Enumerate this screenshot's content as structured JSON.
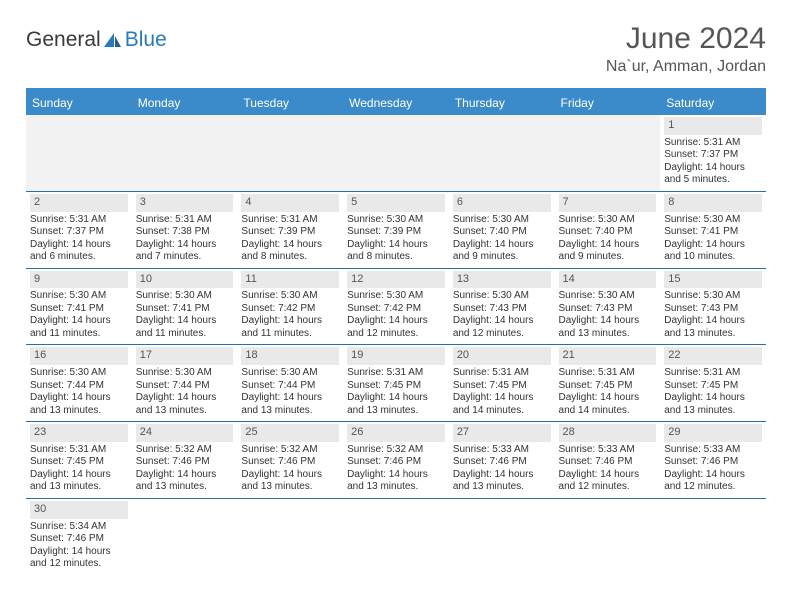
{
  "brand": {
    "part1": "General",
    "part2": "Blue"
  },
  "title": "June 2024",
  "location": "Na`ur, Amman, Jordan",
  "colors": {
    "header_bg": "#3b8bcb",
    "header_text": "#ffffff",
    "daynum_bg": "#e9e9e9",
    "border": "#2a6fa8",
    "text": "#333333",
    "title_color": "#555555"
  },
  "weekdays": [
    "Sunday",
    "Monday",
    "Tuesday",
    "Wednesday",
    "Thursday",
    "Friday",
    "Saturday"
  ],
  "weeks": [
    [
      null,
      null,
      null,
      null,
      null,
      null,
      {
        "n": "1",
        "sr": "Sunrise: 5:31 AM",
        "ss": "Sunset: 7:37 PM",
        "d1": "Daylight: 14 hours",
        "d2": "and 5 minutes."
      }
    ],
    [
      {
        "n": "2",
        "sr": "Sunrise: 5:31 AM",
        "ss": "Sunset: 7:37 PM",
        "d1": "Daylight: 14 hours",
        "d2": "and 6 minutes."
      },
      {
        "n": "3",
        "sr": "Sunrise: 5:31 AM",
        "ss": "Sunset: 7:38 PM",
        "d1": "Daylight: 14 hours",
        "d2": "and 7 minutes."
      },
      {
        "n": "4",
        "sr": "Sunrise: 5:31 AM",
        "ss": "Sunset: 7:39 PM",
        "d1": "Daylight: 14 hours",
        "d2": "and 8 minutes."
      },
      {
        "n": "5",
        "sr": "Sunrise: 5:30 AM",
        "ss": "Sunset: 7:39 PM",
        "d1": "Daylight: 14 hours",
        "d2": "and 8 minutes."
      },
      {
        "n": "6",
        "sr": "Sunrise: 5:30 AM",
        "ss": "Sunset: 7:40 PM",
        "d1": "Daylight: 14 hours",
        "d2": "and 9 minutes."
      },
      {
        "n": "7",
        "sr": "Sunrise: 5:30 AM",
        "ss": "Sunset: 7:40 PM",
        "d1": "Daylight: 14 hours",
        "d2": "and 9 minutes."
      },
      {
        "n": "8",
        "sr": "Sunrise: 5:30 AM",
        "ss": "Sunset: 7:41 PM",
        "d1": "Daylight: 14 hours",
        "d2": "and 10 minutes."
      }
    ],
    [
      {
        "n": "9",
        "sr": "Sunrise: 5:30 AM",
        "ss": "Sunset: 7:41 PM",
        "d1": "Daylight: 14 hours",
        "d2": "and 11 minutes."
      },
      {
        "n": "10",
        "sr": "Sunrise: 5:30 AM",
        "ss": "Sunset: 7:41 PM",
        "d1": "Daylight: 14 hours",
        "d2": "and 11 minutes."
      },
      {
        "n": "11",
        "sr": "Sunrise: 5:30 AM",
        "ss": "Sunset: 7:42 PM",
        "d1": "Daylight: 14 hours",
        "d2": "and 11 minutes."
      },
      {
        "n": "12",
        "sr": "Sunrise: 5:30 AM",
        "ss": "Sunset: 7:42 PM",
        "d1": "Daylight: 14 hours",
        "d2": "and 12 minutes."
      },
      {
        "n": "13",
        "sr": "Sunrise: 5:30 AM",
        "ss": "Sunset: 7:43 PM",
        "d1": "Daylight: 14 hours",
        "d2": "and 12 minutes."
      },
      {
        "n": "14",
        "sr": "Sunrise: 5:30 AM",
        "ss": "Sunset: 7:43 PM",
        "d1": "Daylight: 14 hours",
        "d2": "and 13 minutes."
      },
      {
        "n": "15",
        "sr": "Sunrise: 5:30 AM",
        "ss": "Sunset: 7:43 PM",
        "d1": "Daylight: 14 hours",
        "d2": "and 13 minutes."
      }
    ],
    [
      {
        "n": "16",
        "sr": "Sunrise: 5:30 AM",
        "ss": "Sunset: 7:44 PM",
        "d1": "Daylight: 14 hours",
        "d2": "and 13 minutes."
      },
      {
        "n": "17",
        "sr": "Sunrise: 5:30 AM",
        "ss": "Sunset: 7:44 PM",
        "d1": "Daylight: 14 hours",
        "d2": "and 13 minutes."
      },
      {
        "n": "18",
        "sr": "Sunrise: 5:30 AM",
        "ss": "Sunset: 7:44 PM",
        "d1": "Daylight: 14 hours",
        "d2": "and 13 minutes."
      },
      {
        "n": "19",
        "sr": "Sunrise: 5:31 AM",
        "ss": "Sunset: 7:45 PM",
        "d1": "Daylight: 14 hours",
        "d2": "and 13 minutes."
      },
      {
        "n": "20",
        "sr": "Sunrise: 5:31 AM",
        "ss": "Sunset: 7:45 PM",
        "d1": "Daylight: 14 hours",
        "d2": "and 14 minutes."
      },
      {
        "n": "21",
        "sr": "Sunrise: 5:31 AM",
        "ss": "Sunset: 7:45 PM",
        "d1": "Daylight: 14 hours",
        "d2": "and 14 minutes."
      },
      {
        "n": "22",
        "sr": "Sunrise: 5:31 AM",
        "ss": "Sunset: 7:45 PM",
        "d1": "Daylight: 14 hours",
        "d2": "and 13 minutes."
      }
    ],
    [
      {
        "n": "23",
        "sr": "Sunrise: 5:31 AM",
        "ss": "Sunset: 7:45 PM",
        "d1": "Daylight: 14 hours",
        "d2": "and 13 minutes."
      },
      {
        "n": "24",
        "sr": "Sunrise: 5:32 AM",
        "ss": "Sunset: 7:46 PM",
        "d1": "Daylight: 14 hours",
        "d2": "and 13 minutes."
      },
      {
        "n": "25",
        "sr": "Sunrise: 5:32 AM",
        "ss": "Sunset: 7:46 PM",
        "d1": "Daylight: 14 hours",
        "d2": "and 13 minutes."
      },
      {
        "n": "26",
        "sr": "Sunrise: 5:32 AM",
        "ss": "Sunset: 7:46 PM",
        "d1": "Daylight: 14 hours",
        "d2": "and 13 minutes."
      },
      {
        "n": "27",
        "sr": "Sunrise: 5:33 AM",
        "ss": "Sunset: 7:46 PM",
        "d1": "Daylight: 14 hours",
        "d2": "and 13 minutes."
      },
      {
        "n": "28",
        "sr": "Sunrise: 5:33 AM",
        "ss": "Sunset: 7:46 PM",
        "d1": "Daylight: 14 hours",
        "d2": "and 12 minutes."
      },
      {
        "n": "29",
        "sr": "Sunrise: 5:33 AM",
        "ss": "Sunset: 7:46 PM",
        "d1": "Daylight: 14 hours",
        "d2": "and 12 minutes."
      }
    ],
    [
      {
        "n": "30",
        "sr": "Sunrise: 5:34 AM",
        "ss": "Sunset: 7:46 PM",
        "d1": "Daylight: 14 hours",
        "d2": "and 12 minutes."
      },
      null,
      null,
      null,
      null,
      null,
      null
    ]
  ]
}
